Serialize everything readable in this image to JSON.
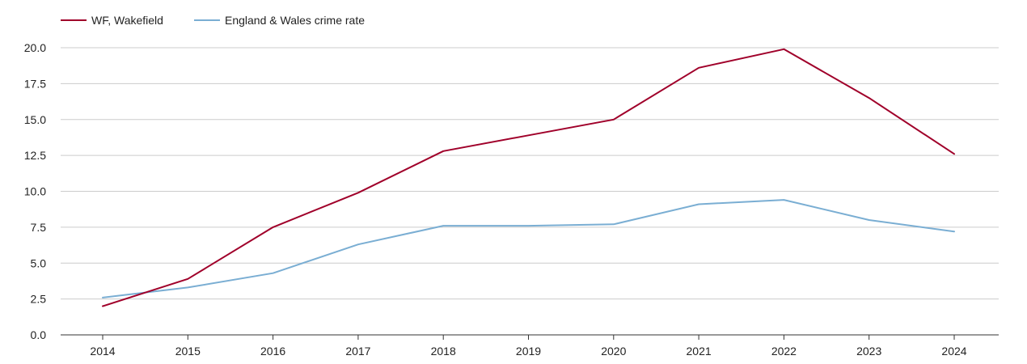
{
  "chart_data": {
    "type": "line",
    "title": "",
    "xlabel": "",
    "ylabel": "",
    "categories": [
      "2014",
      "2015",
      "2016",
      "2017",
      "2018",
      "2019",
      "2020",
      "2021",
      "2022",
      "2023",
      "2024"
    ],
    "ylim": [
      0,
      20
    ],
    "yticks": [
      "0.0",
      "2.5",
      "5.0",
      "7.5",
      "10.0",
      "12.5",
      "15.0",
      "17.5",
      "20.0"
    ],
    "grid": true,
    "legend_position": "top-left",
    "series": [
      {
        "name": "WF, Wakefield",
        "color": "#a0002a",
        "values": [
          2.0,
          3.9,
          7.5,
          9.9,
          12.8,
          13.9,
          15.0,
          18.6,
          19.9,
          16.5,
          12.6
        ]
      },
      {
        "name": "England & Wales crime rate",
        "color": "#7aaed3",
        "values": [
          2.6,
          3.3,
          4.3,
          6.3,
          7.6,
          7.6,
          7.7,
          9.1,
          9.4,
          8.0,
          7.2
        ]
      }
    ]
  }
}
